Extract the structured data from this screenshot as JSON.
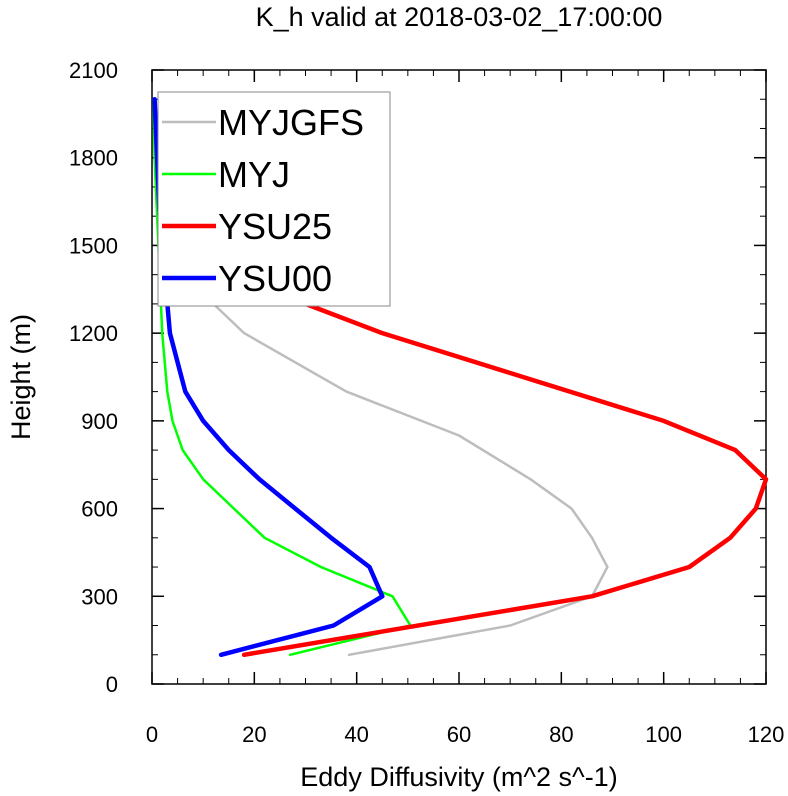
{
  "chart_data": {
    "type": "line",
    "title": "K_h valid at 2018-03-02_17:00:00",
    "xlabel": "Eddy Diffusivity (m^2 s^-1)",
    "ylabel": "Height (m)",
    "xlim": [
      0,
      120
    ],
    "ylim": [
      0,
      2100
    ],
    "xticks": [
      "0",
      "20",
      "40",
      "60",
      "80",
      "100",
      "120"
    ],
    "yticks": [
      "0",
      "300",
      "600",
      "900",
      "1200",
      "1500",
      "1800",
      "2100"
    ],
    "legend_position": "top-left",
    "series": [
      {
        "name": "MYJGFS",
        "color": "#bdbdbd",
        "points": [
          [
            38.5,
            100
          ],
          [
            70,
            200
          ],
          [
            86,
            300
          ],
          [
            89,
            400
          ],
          [
            86,
            500
          ],
          [
            82,
            600
          ],
          [
            74,
            700
          ],
          [
            60,
            850
          ],
          [
            38,
            1000
          ],
          [
            18,
            1200
          ],
          [
            12,
            1300
          ],
          [
            8,
            1400
          ],
          [
            5,
            1500
          ],
          [
            3.5,
            1600
          ],
          [
            2.5,
            1700
          ],
          [
            1.5,
            1800
          ],
          [
            1,
            1900
          ],
          [
            0.5,
            2000
          ]
        ]
      },
      {
        "name": "MYJ",
        "color": "#00ff00",
        "points": [
          [
            27,
            100
          ],
          [
            50.5,
            200
          ],
          [
            47,
            300
          ],
          [
            33,
            400
          ],
          [
            22,
            500
          ],
          [
            16,
            600
          ],
          [
            10,
            700
          ],
          [
            6,
            800
          ],
          [
            4,
            900
          ],
          [
            3,
            1000
          ],
          [
            2,
            1200
          ],
          [
            1.5,
            1400
          ],
          [
            1,
            1600
          ],
          [
            0.5,
            1800
          ],
          [
            0.3,
            2000
          ]
        ]
      },
      {
        "name": "YSU25",
        "color": "#ff0000",
        "points": [
          [
            18,
            100
          ],
          [
            86,
            300
          ],
          [
            105,
            400
          ],
          [
            113,
            500
          ],
          [
            118,
            600
          ],
          [
            120,
            700
          ],
          [
            114,
            800
          ],
          [
            100,
            900
          ],
          [
            45,
            1200
          ],
          [
            30,
            1300
          ],
          [
            20,
            1400
          ],
          [
            11,
            1500
          ],
          [
            7,
            1600
          ],
          [
            4,
            1700
          ],
          [
            3,
            1800
          ],
          [
            2,
            1900
          ],
          [
            1.5,
            2000
          ]
        ]
      },
      {
        "name": "YSU00",
        "color": "#0000ff",
        "points": [
          [
            13.5,
            100
          ],
          [
            35.5,
            200
          ],
          [
            45,
            300
          ],
          [
            42.5,
            400
          ],
          [
            35,
            500
          ],
          [
            28,
            600
          ],
          [
            21,
            700
          ],
          [
            15,
            800
          ],
          [
            10,
            900
          ],
          [
            6.5,
            1000
          ],
          [
            3.5,
            1200
          ],
          [
            2.5,
            1400
          ],
          [
            1.5,
            1600
          ],
          [
            1,
            1800
          ],
          [
            0.5,
            2000
          ]
        ]
      }
    ]
  }
}
